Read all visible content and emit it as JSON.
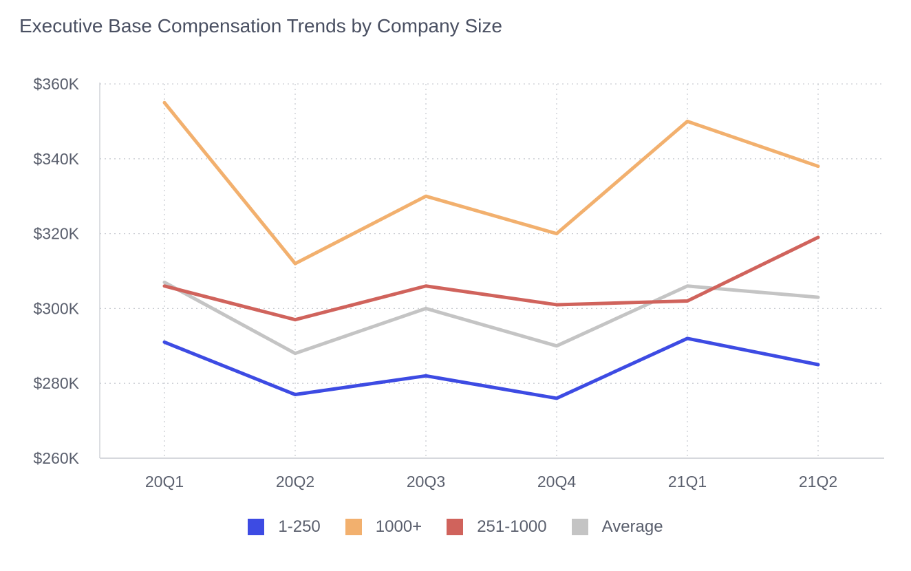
{
  "chart_data": {
    "type": "line",
    "title": "Executive Base Compensation Trends by Company Size",
    "categories": [
      "20Q1",
      "20Q2",
      "20Q3",
      "20Q4",
      "21Q1",
      "21Q2"
    ],
    "ylim": [
      260000,
      360000
    ],
    "yticks": [
      {
        "value": 260000,
        "label": "$260K"
      },
      {
        "value": 280000,
        "label": "$280K"
      },
      {
        "value": 300000,
        "label": "$300K"
      },
      {
        "value": 320000,
        "label": "$320K"
      },
      {
        "value": 340000,
        "label": "$340K"
      },
      {
        "value": 360000,
        "label": "$360K"
      }
    ],
    "grid": true,
    "legend_position": "bottom",
    "series": [
      {
        "name": "1-250",
        "color": "#3d4be3",
        "values": [
          291000,
          277000,
          282000,
          276000,
          292000,
          285000
        ]
      },
      {
        "name": "1000+",
        "color": "#f2b06e",
        "values": [
          355000,
          312000,
          330000,
          320000,
          350000,
          338000
        ]
      },
      {
        "name": "251-1000",
        "color": "#d0635c",
        "values": [
          306000,
          297000,
          306000,
          301000,
          302000,
          319000
        ]
      },
      {
        "name": "Average",
        "color": "#c4c4c4",
        "values": [
          307000,
          288000,
          300000,
          290000,
          306000,
          303000
        ]
      }
    ]
  }
}
